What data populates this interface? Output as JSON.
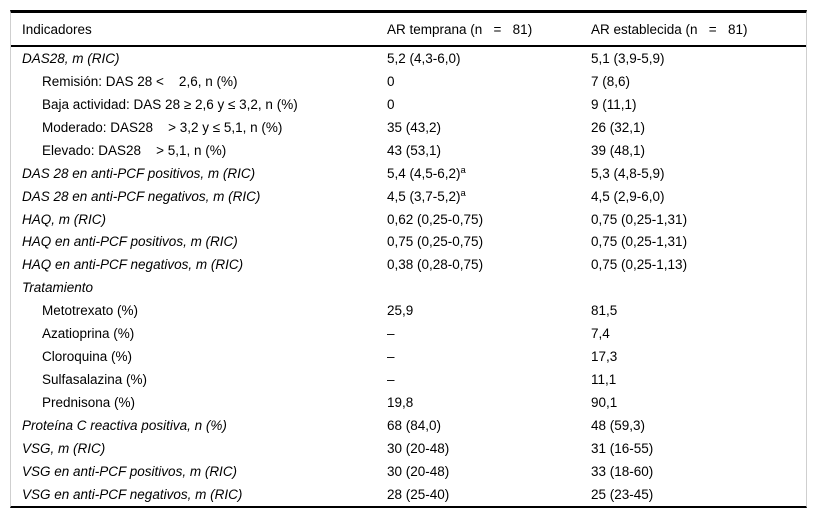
{
  "table": {
    "header": {
      "col1": "Indicadores",
      "col2": "AR temprana (n   =   81)",
      "col3": "AR establecida (n   =   81)"
    },
    "rows": [
      {
        "label": "DAS28, m (RIC)",
        "italic": true,
        "indent": false,
        "v1": "5,2 (4,3-6,0)",
        "v1sup": "",
        "v2": "5,1 (3,9-5,9)"
      },
      {
        "label": "Remisión: DAS 28 <    2,6, n (%)",
        "italic": false,
        "indent": true,
        "v1": "0",
        "v1sup": "",
        "v2": "7 (8,6)"
      },
      {
        "label": "Baja actividad: DAS 28 ≥ 2,6 y ≤ 3,2, n (%)",
        "italic": false,
        "indent": true,
        "v1": "0",
        "v1sup": "",
        "v2": "9 (11,1)"
      },
      {
        "label": "Moderado: DAS28    > 3,2 y ≤ 5,1, n (%)",
        "italic": false,
        "indent": true,
        "v1": "35 (43,2)",
        "v1sup": "",
        "v2": "26 (32,1)"
      },
      {
        "label": "Elevado: DAS28    > 5,1, n (%)",
        "italic": false,
        "indent": true,
        "v1": "43 (53,1)",
        "v1sup": "",
        "v2": "39 (48,1)"
      },
      {
        "label": "DAS 28 en anti-PCF positivos, m (RIC)",
        "italic": true,
        "indent": false,
        "v1": "5,4 (4,5-6,2)",
        "v1sup": "a",
        "v2": "5,3 (4,8-5,9)"
      },
      {
        "label": "DAS 28 en anti-PCF negativos, m (RIC)",
        "italic": true,
        "indent": false,
        "v1": "4,5 (3,7-5,2)",
        "v1sup": "a",
        "v2": "4,5 (2,9-6,0)"
      },
      {
        "label": "HAQ, m (RIC)",
        "italic": true,
        "indent": false,
        "v1": "0,62 (0,25-0,75)",
        "v1sup": "",
        "v2": "0,75 (0,25-1,31)"
      },
      {
        "label": "HAQ en anti-PCF positivos, m (RIC)",
        "italic": true,
        "indent": false,
        "v1": "0,75 (0,25-0,75)",
        "v1sup": "",
        "v2": "0,75 (0,25-1,31)"
      },
      {
        "label": "HAQ en anti-PCF negativos, m (RIC)",
        "italic": true,
        "indent": false,
        "v1": "0,38 (0,28-0,75)",
        "v1sup": "",
        "v2": "0,75 (0,25-1,13)"
      },
      {
        "label": "Tratamiento",
        "italic": true,
        "indent": false,
        "v1": "",
        "v1sup": "",
        "v2": ""
      },
      {
        "label": "Metotrexato (%)",
        "italic": false,
        "indent": true,
        "v1": "25,9",
        "v1sup": "",
        "v2": "81,5"
      },
      {
        "label": "Azatioprina (%)",
        "italic": false,
        "indent": true,
        "v1": "–",
        "v1sup": "",
        "v2": "7,4"
      },
      {
        "label": "Cloroquina (%)",
        "italic": false,
        "indent": true,
        "v1": "–",
        "v1sup": "",
        "v2": "17,3"
      },
      {
        "label": "Sulfasalazina (%)",
        "italic": false,
        "indent": true,
        "v1": "–",
        "v1sup": "",
        "v2": "11,1"
      },
      {
        "label": "Prednisona (%)",
        "italic": false,
        "indent": true,
        "v1": "19,8",
        "v1sup": "",
        "v2": "90,1"
      },
      {
        "label": "Proteína C reactiva positiva, n (%)",
        "italic": true,
        "indent": false,
        "v1": "68 (84,0)",
        "v1sup": "",
        "v2": "48 (59,3)"
      },
      {
        "label": "VSG, m (RIC)",
        "italic": true,
        "indent": false,
        "v1": "30 (20-48)",
        "v1sup": "",
        "v2": "31 (16-55)"
      },
      {
        "label": "VSG en anti-PCF positivos, m (RIC)",
        "italic": true,
        "indent": false,
        "v1": "30 (20-48)",
        "v1sup": "",
        "v2": "33 (18-60)"
      },
      {
        "label": "VSG en anti-PCF negativos, m (RIC)",
        "italic": true,
        "indent": false,
        "v1": "28 (25-40)",
        "v1sup": "",
        "v2": "25 (23-45)"
      }
    ],
    "colors": {
      "text": "#000000",
      "background": "#ffffff",
      "heavy_rule": "#000000",
      "side_rule": "#cfcfcf"
    }
  }
}
